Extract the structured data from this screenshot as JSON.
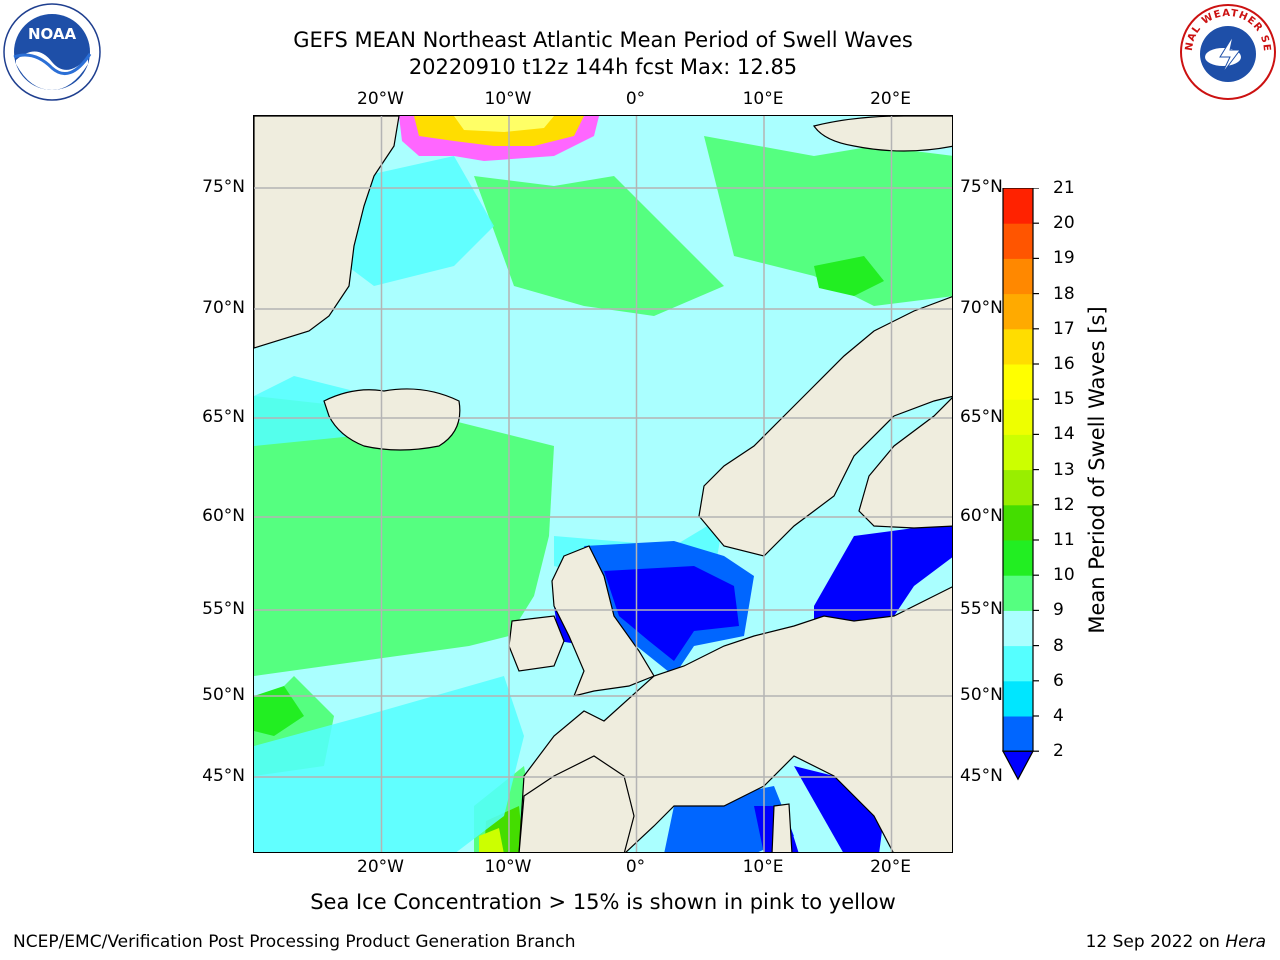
{
  "header": {
    "title_line1": "GEFS MEAN Northeast Atlantic Mean Period of Swell Waves",
    "title_line2": "20220910 t12z 144h fcst   Max: 12.85"
  },
  "logos": {
    "left": {
      "text": "NOAA",
      "icon": "noaa-logo-icon"
    },
    "right": {
      "text": "NATIONAL WEATHER SERVICE",
      "icon": "nws-logo-icon"
    }
  },
  "map": {
    "lon_ticks_top": [
      "20°W",
      "10°W",
      "0°",
      "10°E",
      "20°E"
    ],
    "lon_ticks_bottom": [
      "20°W",
      "10°W",
      "0°",
      "10°E",
      "20°E"
    ],
    "lat_ticks_left": [
      "75°N",
      "70°N",
      "65°N",
      "60°N",
      "55°N",
      "50°N",
      "45°N"
    ],
    "lat_ticks_right": [
      "75°N",
      "70°N",
      "65°N",
      "60°N",
      "55°N",
      "50°N",
      "45°N"
    ],
    "lon_values": [
      -20,
      -10,
      0,
      10,
      20
    ],
    "lat_values": [
      75,
      70,
      65,
      60,
      55,
      50,
      45
    ],
    "land_color": "#efedde",
    "grid_color": "#b4b4b4"
  },
  "colorbar": {
    "title": "Mean Period of Swell Waves [s]",
    "levels": [
      "2",
      "4",
      "6",
      "8",
      "9",
      "10",
      "11",
      "12",
      "13",
      "14",
      "15",
      "16",
      "17",
      "18",
      "19",
      "20",
      "21"
    ],
    "colors": [
      "#0066ff",
      "#00e6ff",
      "#55ffff",
      "#aaffff",
      "#55ff80",
      "#22ee22",
      "#44dd00",
      "#99ee00",
      "#ccff00",
      "#eeff00",
      "#ffff00",
      "#ffdd00",
      "#ffaa00",
      "#ff8800",
      "#ff5500",
      "#ff2200"
    ],
    "under_color": "#0000ff"
  },
  "subtitle": "Sea Ice Concentration > 15% is shown in pink to yellow",
  "footer": {
    "left": "NCEP/EMC/Verification Post Processing Product Generation Branch",
    "right_date": "12 Sep 2022 on",
    "right_host": "Hera"
  }
}
